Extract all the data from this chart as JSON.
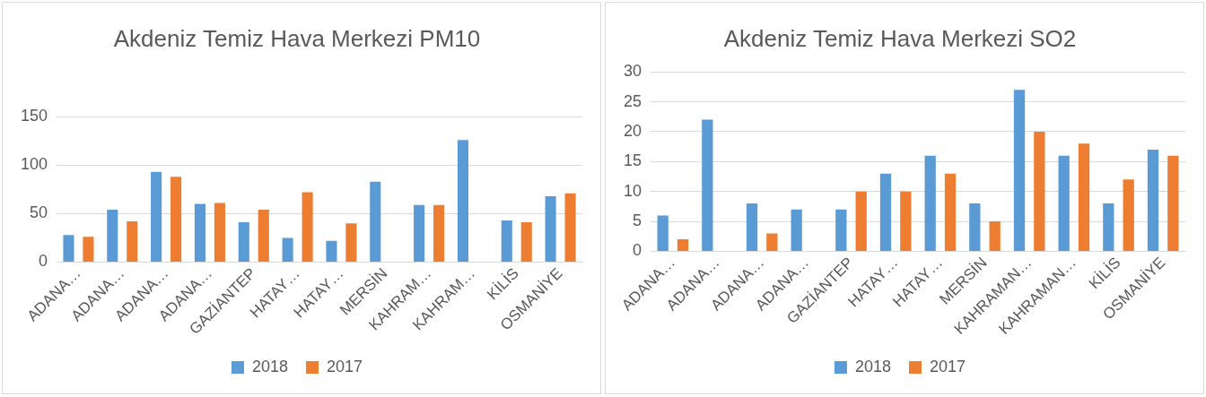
{
  "chart_data": [
    {
      "type": "bar",
      "title": "Akdeniz Temiz Hava Merkezi PM10",
      "categories": [
        "ADANA…",
        "ADANA…",
        "ADANA…",
        "ADANA…",
        "GAZİANTEP",
        "HATAY…",
        "HATAY…",
        "MERSİN",
        "KAHRAM…",
        "KAHRAM…",
        "KİLİS",
        "OSMANİYE"
      ],
      "series": [
        {
          "name": "2018",
          "color": "#5b9bd5",
          "values": [
            28,
            54,
            93,
            60,
            41,
            25,
            22,
            83,
            59,
            126,
            43,
            68
          ]
        },
        {
          "name": "2017",
          "color": "#ed7d31",
          "values": [
            26,
            42,
            88,
            61,
            54,
            72,
            40,
            null,
            59,
            null,
            41,
            71
          ]
        }
      ],
      "ylim": [
        0,
        150
      ],
      "yticks": [
        0,
        50,
        100,
        150
      ],
      "grid": "y",
      "legend": "bottom"
    },
    {
      "type": "bar",
      "title": "Akdeniz Temiz Hava Merkezi SO2",
      "categories": [
        "ADANA…",
        "ADANA…",
        "ADANA…",
        "ADANA…",
        "GAZİANTEP",
        "HATAY…",
        "HATAY…",
        "MERSİN",
        "KAHRAMAN…",
        "KAHRAMAN…",
        "KİLİS",
        "OSMANİYE"
      ],
      "series": [
        {
          "name": "2018",
          "color": "#5b9bd5",
          "values": [
            6,
            22,
            8,
            7,
            7,
            13,
            16,
            8,
            27,
            16,
            8,
            17
          ]
        },
        {
          "name": "2017",
          "color": "#ed7d31",
          "values": [
            2,
            null,
            3,
            null,
            10,
            10,
            13,
            5,
            20,
            18,
            12,
            16
          ]
        }
      ],
      "ylim": [
        0,
        30
      ],
      "yticks": [
        0,
        5,
        10,
        15,
        20,
        25,
        30
      ],
      "grid": "y",
      "legend": "bottom"
    }
  ]
}
